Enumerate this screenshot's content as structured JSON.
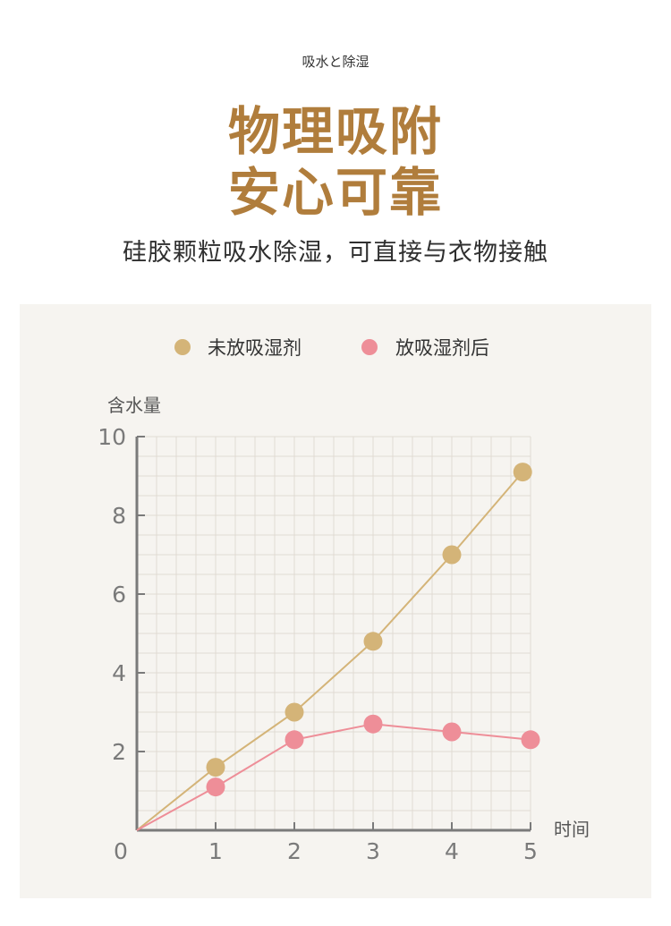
{
  "header": {
    "kicker": "吸水と除湿",
    "headline_line1": "物理吸附",
    "headline_line2": "安心可靠",
    "subtitle": "硅胶颗粒吸水除湿，可直接与衣物接触"
  },
  "colors": {
    "gold": "#b07d3c",
    "series_before": "#d4b478",
    "series_after": "#ee8e98",
    "panel_bg": "#f6f4f0",
    "grid": "#e0dbd3",
    "axis": "#7a7a7a"
  },
  "chart_data": {
    "type": "line",
    "xlabel": "时间",
    "ylabel": "含水量",
    "xlim": [
      0,
      5
    ],
    "ylim": [
      0,
      10
    ],
    "x_ticks": [
      "0",
      "1",
      "2",
      "3",
      "4",
      "5"
    ],
    "y_ticks": [
      "2",
      "4",
      "6",
      "8",
      "10"
    ],
    "grid": true,
    "legend_position": "top",
    "series": [
      {
        "name": "未放吸湿剂",
        "color": "#d4b478",
        "points": [
          [
            0,
            0
          ],
          [
            1,
            1.6
          ],
          [
            2,
            3.0
          ],
          [
            3,
            4.8
          ],
          [
            4,
            7.0
          ],
          [
            4.9,
            9.1
          ]
        ]
      },
      {
        "name": "放吸湿剂后",
        "color": "#ee8e98",
        "points": [
          [
            0,
            0
          ],
          [
            1,
            1.1
          ],
          [
            2,
            2.3
          ],
          [
            3,
            2.7
          ],
          [
            4,
            2.5
          ],
          [
            5,
            2.3
          ]
        ]
      }
    ]
  }
}
